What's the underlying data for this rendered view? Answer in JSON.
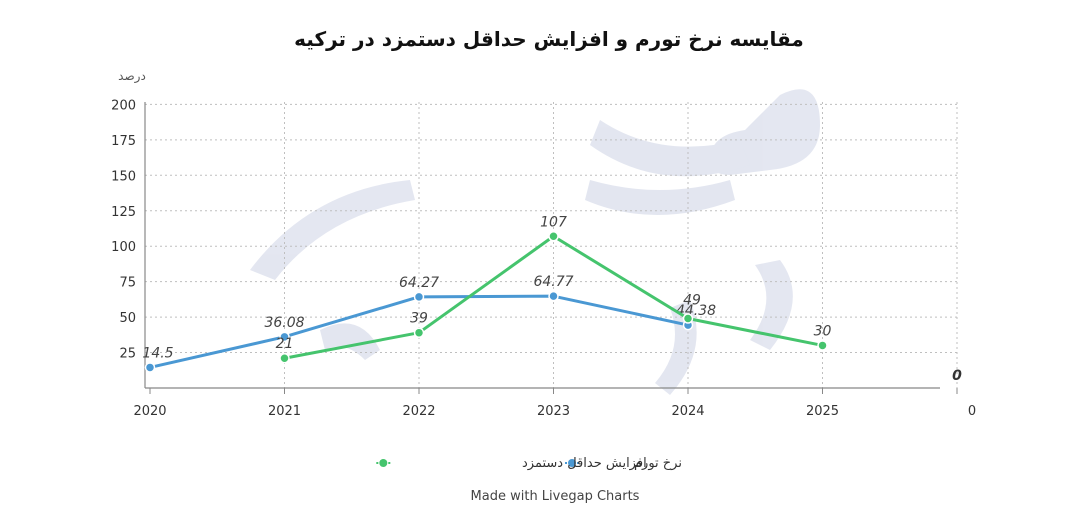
{
  "chart_data": {
    "type": "line",
    "title": "مقایسه نرخ تورم و افزایش حداقل دستمزد در ترکیه",
    "ylabel": "درصد",
    "xlabel": "",
    "x": [
      "2020",
      "2021",
      "2022",
      "2023",
      "2024",
      "2025"
    ],
    "x_extra_tick": "0",
    "yticks": [
      "25",
      "50",
      "75",
      "100",
      "125",
      "150",
      "175",
      "200"
    ],
    "ylim": [
      0,
      200
    ],
    "grid": true,
    "legend_position": "bottom",
    "series": [
      {
        "name": "نرخ تورم",
        "color": "#4a98d3",
        "values": [
          14.5,
          36.08,
          64.27,
          64.77,
          44.38,
          null
        ],
        "labels": [
          "14.5",
          "36.08",
          "64.27",
          "64.77",
          "44.38",
          ""
        ]
      },
      {
        "name": "افزایش حداقل دستمزد",
        "color": "#45c46d",
        "values": [
          null,
          21,
          39,
          107,
          49,
          30
        ],
        "labels": [
          "",
          "21",
          "39",
          "107",
          "49",
          "30"
        ]
      }
    ],
    "annotations": [
      {
        "text": "0"
      }
    ]
  },
  "credit": "Made with Livegap Charts",
  "watermark": "اقتصاد معاصر"
}
